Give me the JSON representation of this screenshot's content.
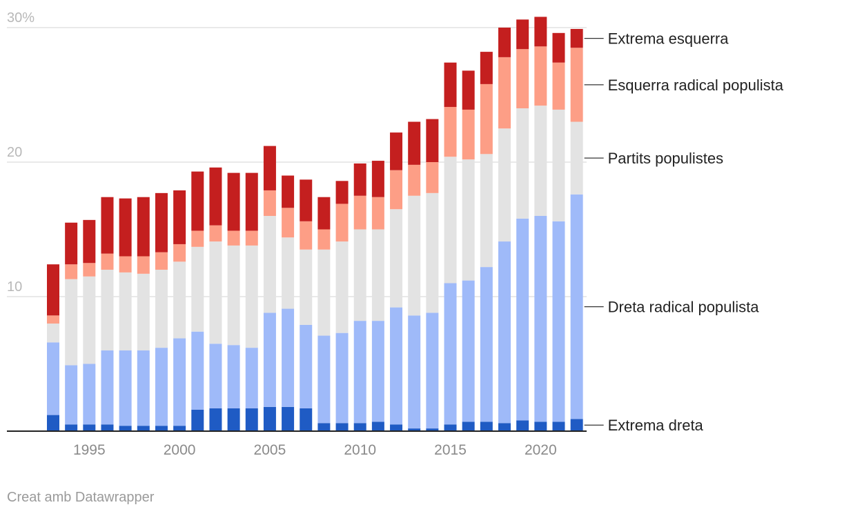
{
  "chart_data": {
    "type": "bar",
    "stacked": true,
    "y_axis": {
      "ylim": [
        0,
        30
      ],
      "ticks": [
        {
          "value": 10,
          "label": "10"
        },
        {
          "value": 20,
          "label": "20"
        },
        {
          "value": 30,
          "label": "30%"
        }
      ],
      "grid": true
    },
    "x_axis": {
      "ticks": [
        {
          "year": 1995,
          "label": "1995"
        },
        {
          "year": 2000,
          "label": "2000"
        },
        {
          "year": 2005,
          "label": "2005"
        },
        {
          "year": 2010,
          "label": "2010"
        },
        {
          "year": 2015,
          "label": "2015"
        },
        {
          "year": 2020,
          "label": "2020"
        }
      ]
    },
    "categories": [
      1993,
      1994,
      1995,
      1996,
      1997,
      1998,
      1999,
      2000,
      2001,
      2002,
      2003,
      2004,
      2005,
      2006,
      2007,
      2008,
      2009,
      2010,
      2011,
      2012,
      2013,
      2014,
      2015,
      2016,
      2017,
      2018,
      2019,
      2020,
      2021,
      2022
    ],
    "series": [
      {
        "name": "Extrema dreta",
        "color": "#1f5bc4",
        "values": [
          1.2,
          0.5,
          0.5,
          0.5,
          0.4,
          0.4,
          0.4,
          0.4,
          1.6,
          1.7,
          1.7,
          1.7,
          1.8,
          1.8,
          1.7,
          0.6,
          0.6,
          0.6,
          0.7,
          0.5,
          0.2,
          0.2,
          0.5,
          0.7,
          0.7,
          0.6,
          0.8,
          0.7,
          0.7,
          0.9
        ]
      },
      {
        "name": "Dreta radical populista",
        "color": "#9fbaf9",
        "values": [
          5.4,
          4.4,
          4.5,
          5.5,
          5.6,
          5.6,
          5.8,
          6.5,
          5.8,
          4.8,
          4.7,
          4.5,
          7.0,
          7.3,
          6.2,
          6.5,
          6.7,
          7.6,
          7.5,
          8.7,
          8.4,
          8.6,
          10.5,
          10.5,
          11.5,
          13.5,
          15.0,
          15.3,
          14.9,
          16.7
        ]
      },
      {
        "name": "Partits populistes",
        "color": "#e3e3e3",
        "values": [
          1.4,
          6.4,
          6.5,
          6.0,
          5.8,
          5.7,
          5.8,
          5.7,
          6.3,
          7.6,
          7.4,
          7.6,
          7.2,
          5.3,
          5.6,
          6.4,
          6.8,
          6.8,
          6.8,
          7.3,
          8.9,
          8.9,
          9.4,
          9.0,
          8.4,
          8.4,
          8.2,
          8.2,
          8.3,
          5.4
        ]
      },
      {
        "name": "Esquerra radical populista",
        "color": "#fd9e86",
        "values": [
          0.6,
          1.1,
          1.0,
          1.2,
          1.2,
          1.3,
          1.3,
          1.3,
          1.2,
          1.2,
          1.1,
          1.1,
          1.9,
          2.2,
          2.1,
          1.5,
          2.8,
          2.5,
          2.4,
          2.9,
          2.3,
          2.3,
          3.7,
          3.7,
          5.2,
          5.3,
          4.4,
          4.4,
          3.5,
          5.5
        ]
      },
      {
        "name": "Extrema esquerra",
        "color": "#c41f1f",
        "values": [
          3.8,
          3.1,
          3.2,
          4.2,
          4.3,
          4.4,
          4.4,
          4.0,
          4.4,
          4.3,
          4.3,
          4.3,
          3.3,
          2.4,
          3.1,
          2.4,
          1.7,
          2.4,
          2.7,
          2.8,
          3.2,
          3.2,
          3.3,
          2.9,
          2.4,
          2.2,
          2.2,
          2.2,
          2.2,
          1.4
        ]
      }
    ]
  },
  "credit": "Creat amb Datawrapper"
}
